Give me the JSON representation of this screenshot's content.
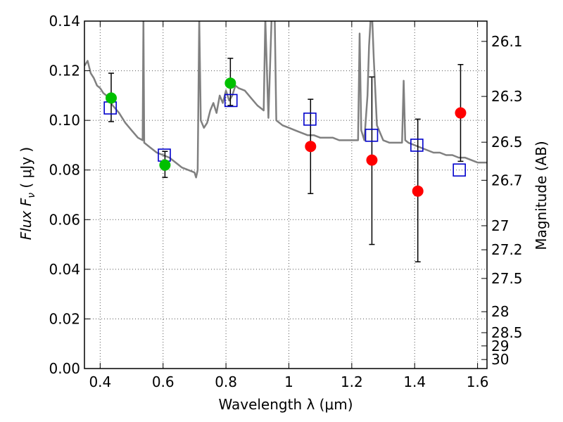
{
  "chart_data": {
    "type": "scatter",
    "xlabel": "Wavelength  λ (μm)",
    "ylabel": "Flux  F",
    "ylabel_sub": "ν",
    "ylabel_unit": "  ( μJy )",
    "y2label": "Magnitude (AB)",
    "xlim": [
      0.35,
      1.63
    ],
    "ylim": [
      0.0,
      0.14
    ],
    "grid": true,
    "x_ticks": [
      0.4,
      0.6,
      0.8,
      1.0,
      1.2,
      1.4,
      1.6
    ],
    "x_tick_labels": [
      "0.4",
      "0.6",
      "0.8",
      "1",
      "1.2",
      "1.4",
      "1.6"
    ],
    "y_ticks": [
      0.0,
      0.02,
      0.04,
      0.06,
      0.08,
      0.1,
      0.12,
      0.14
    ],
    "y_tick_labels": [
      "0.00",
      "0.02",
      "0.04",
      "0.06",
      "0.08",
      "0.10",
      "0.12",
      "0.14"
    ],
    "y2_ticks": [
      26.1,
      26.3,
      26.5,
      26.7,
      27,
      27.2,
      27.5,
      28,
      28.5,
      29,
      30
    ],
    "y2_tick_labels": [
      "26.1",
      "26.3",
      "26.5",
      "26.7",
      "27",
      "27.2",
      "27.5",
      "28",
      "28.5",
      "29",
      "30"
    ],
    "colors": {
      "model": "#808080",
      "green": "#00c000",
      "red": "#ff0000",
      "square": "#0000cc",
      "errorbar": "#000000",
      "grid": "#555555"
    },
    "model_spectrum": [
      [
        0.35,
        0.122
      ],
      [
        0.36,
        0.124
      ],
      [
        0.37,
        0.119
      ],
      [
        0.38,
        0.117
      ],
      [
        0.39,
        0.114
      ],
      [
        0.4,
        0.113
      ],
      [
        0.41,
        0.111
      ],
      [
        0.42,
        0.11
      ],
      [
        0.44,
        0.106
      ],
      [
        0.46,
        0.103
      ],
      [
        0.48,
        0.099
      ],
      [
        0.5,
        0.096
      ],
      [
        0.52,
        0.093
      ],
      [
        0.535,
        0.092
      ],
      [
        0.5375,
        0.141
      ],
      [
        0.54,
        0.091
      ],
      [
        0.56,
        0.089
      ],
      [
        0.58,
        0.087
      ],
      [
        0.6,
        0.086
      ],
      [
        0.62,
        0.085
      ],
      [
        0.64,
        0.083
      ],
      [
        0.66,
        0.081
      ],
      [
        0.68,
        0.08
      ],
      [
        0.7,
        0.079
      ],
      [
        0.705,
        0.077
      ],
      [
        0.71,
        0.08
      ],
      [
        0.715,
        0.141
      ],
      [
        0.72,
        0.1
      ],
      [
        0.73,
        0.097
      ],
      [
        0.74,
        0.099
      ],
      [
        0.75,
        0.104
      ],
      [
        0.76,
        0.107
      ],
      [
        0.77,
        0.103
      ],
      [
        0.78,
        0.11
      ],
      [
        0.79,
        0.107
      ],
      [
        0.8,
        0.112
      ],
      [
        0.81,
        0.108
      ],
      [
        0.82,
        0.11
      ],
      [
        0.83,
        0.114
      ],
      [
        0.84,
        0.113
      ],
      [
        0.86,
        0.112
      ],
      [
        0.88,
        0.109
      ],
      [
        0.9,
        0.106
      ],
      [
        0.92,
        0.104
      ],
      [
        0.925,
        0.141
      ],
      [
        0.935,
        0.101
      ],
      [
        0.945,
        0.141
      ],
      [
        0.955,
        0.141
      ],
      [
        0.96,
        0.1
      ],
      [
        0.98,
        0.098
      ],
      [
        1.0,
        0.097
      ],
      [
        1.02,
        0.096
      ],
      [
        1.04,
        0.095
      ],
      [
        1.06,
        0.094
      ],
      [
        1.08,
        0.094
      ],
      [
        1.1,
        0.093
      ],
      [
        1.12,
        0.093
      ],
      [
        1.14,
        0.093
      ],
      [
        1.16,
        0.092
      ],
      [
        1.18,
        0.092
      ],
      [
        1.2,
        0.092
      ],
      [
        1.21,
        0.092
      ],
      [
        1.22,
        0.092
      ],
      [
        1.225,
        0.135
      ],
      [
        1.23,
        0.096
      ],
      [
        1.24,
        0.092
      ],
      [
        1.25,
        0.11
      ],
      [
        1.255,
        0.13
      ],
      [
        1.26,
        0.141
      ],
      [
        1.265,
        0.141
      ],
      [
        1.27,
        0.125
      ],
      [
        1.28,
        0.098
      ],
      [
        1.3,
        0.092
      ],
      [
        1.32,
        0.091
      ],
      [
        1.34,
        0.091
      ],
      [
        1.36,
        0.091
      ],
      [
        1.365,
        0.116
      ],
      [
        1.37,
        0.092
      ],
      [
        1.38,
        0.091
      ],
      [
        1.4,
        0.09
      ],
      [
        1.42,
        0.089
      ],
      [
        1.44,
        0.088
      ],
      [
        1.46,
        0.087
      ],
      [
        1.48,
        0.087
      ],
      [
        1.5,
        0.086
      ],
      [
        1.52,
        0.086
      ],
      [
        1.54,
        0.085
      ],
      [
        1.56,
        0.085
      ],
      [
        1.58,
        0.084
      ],
      [
        1.6,
        0.083
      ],
      [
        1.62,
        0.083
      ],
      [
        1.63,
        0.083
      ]
    ],
    "observed_points": [
      {
        "x": 0.435,
        "y": 0.109,
        "err_low": 0.0995,
        "err_high": 0.119,
        "color": "green"
      },
      {
        "x": 0.606,
        "y": 0.082,
        "err_low": 0.077,
        "err_high": 0.0875,
        "color": "green"
      },
      {
        "x": 0.814,
        "y": 0.115,
        "err_low": 0.106,
        "err_high": 0.125,
        "color": "green"
      },
      {
        "x": 1.069,
        "y": 0.0895,
        "err_low": 0.0705,
        "err_high": 0.1085,
        "color": "red"
      },
      {
        "x": 1.264,
        "y": 0.084,
        "err_low": 0.05,
        "err_high": 0.1175,
        "color": "red"
      },
      {
        "x": 1.41,
        "y": 0.0715,
        "err_low": 0.043,
        "err_high": 0.1005,
        "color": "red"
      },
      {
        "x": 1.546,
        "y": 0.103,
        "err_low": 0.0835,
        "err_high": 0.1225,
        "color": "red"
      }
    ],
    "model_points": [
      {
        "x": 0.432,
        "y": 0.105
      },
      {
        "x": 0.604,
        "y": 0.086
      },
      {
        "x": 0.816,
        "y": 0.108
      },
      {
        "x": 1.067,
        "y": 0.1005
      },
      {
        "x": 1.263,
        "y": 0.094
      },
      {
        "x": 1.407,
        "y": 0.09
      },
      {
        "x": 1.542,
        "y": 0.08
      }
    ]
  }
}
